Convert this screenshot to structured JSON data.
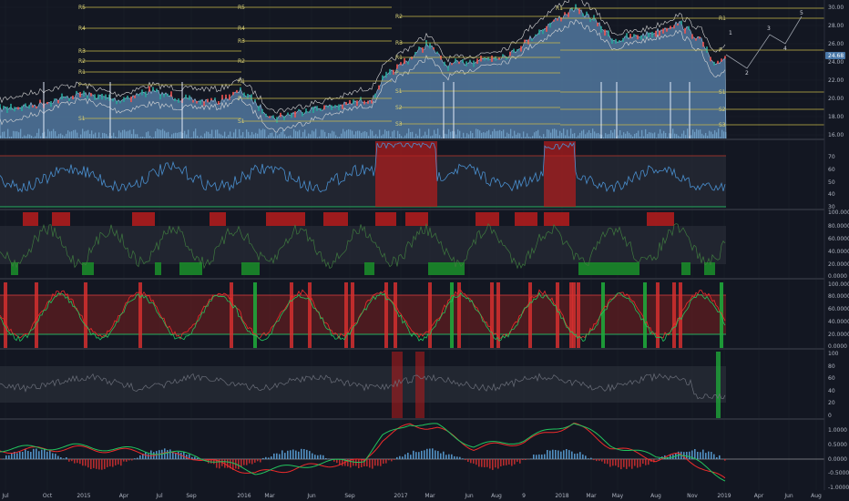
{
  "colors": {
    "background": "#131722",
    "grid": "#20242f",
    "price_area": "#5b86b0",
    "level_line": "#c9b84a",
    "separator": "#2a2e39",
    "red_zone": "#b71c1c",
    "green_zone": "#1b8a2a",
    "rsi_line": "#4a90d0",
    "stoch_line": "#3f7a3f",
    "macd_green": "#22c55e",
    "macd_red": "#ef2b2b",
    "hist_blue": "#5ea6df",
    "hist_red": "#d32f2f"
  },
  "price_pane": {
    "last_price": "24.68",
    "y_ticks": [
      "30.00",
      "28.00",
      "26.00",
      "24.00",
      "22.00",
      "20.00",
      "18.00",
      "16.00"
    ],
    "levels_left": [
      "R5",
      "R4",
      "R3",
      "R2",
      "R1",
      "P",
      "S1"
    ],
    "levels_mid": [
      "R5",
      "R4",
      "R3",
      "R2",
      "R1",
      "P",
      "S1"
    ],
    "levels_right1": [
      "R2",
      "R3",
      "R1",
      "P",
      "S1",
      "S2",
      "S3"
    ],
    "levels_right2": [
      "R1",
      "R1",
      "P",
      "S1",
      "S2",
      "S3"
    ],
    "wave_labels": [
      "1",
      "2",
      "3",
      "4",
      "5"
    ]
  },
  "rsi_pane": {
    "y_ticks": [
      "70",
      "60",
      "50",
      "40",
      "30"
    ]
  },
  "stoch_pane": {
    "y_ticks": [
      "100.0000",
      "80.0000",
      "60.0000",
      "40.0000",
      "20.0000",
      "0.0000"
    ]
  },
  "osc_pane": {
    "y_ticks": [
      "100.0000",
      "80.0000",
      "60.0000",
      "40.0000",
      "20.0000",
      "0.0000"
    ]
  },
  "cci_pane": {
    "y_ticks": [
      "100",
      "80",
      "60",
      "40",
      "20",
      "0"
    ]
  },
  "macd_pane": {
    "y_ticks": [
      "1.0000",
      "0.5000",
      "0.0000",
      "-0.5000",
      "-1.0000"
    ]
  },
  "x_axis": {
    "labels": [
      "Jul",
      "Oct",
      "2015",
      "Apr",
      "Jul",
      "Sep",
      "2016",
      "Mar",
      "Jun",
      "Sep",
      "2017",
      "Mar",
      "Jun",
      "Aug",
      "9",
      "2018",
      "Mar",
      "May",
      "Aug",
      "Nov",
      "2019",
      "Apr",
      "Jun",
      "Aug"
    ]
  }
}
